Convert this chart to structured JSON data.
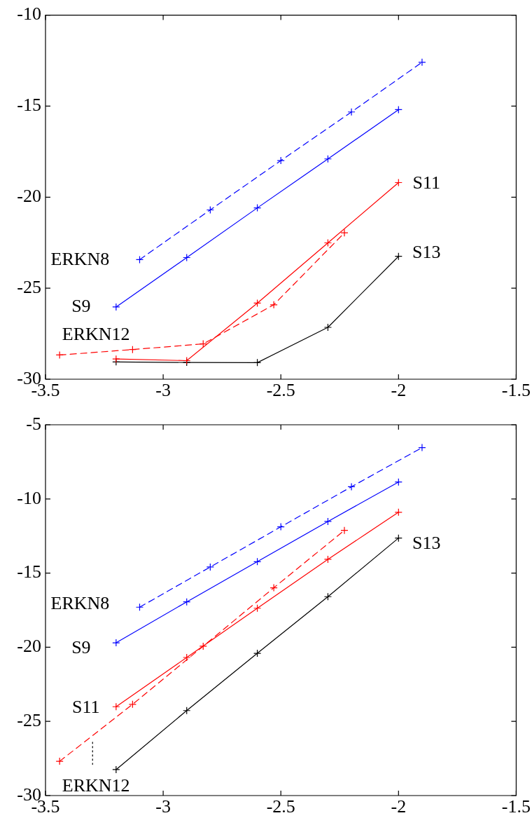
{
  "chart_data": [
    {
      "type": "line",
      "marker": "cross",
      "grid": false,
      "legend": false,
      "xlim": [
        -3.5,
        -1.5
      ],
      "xticks": [
        -3.5,
        -3,
        -2.5,
        -2,
        -1.5
      ],
      "ylim": [
        -30,
        -10
      ],
      "yticks": [
        -30,
        -25,
        -20,
        -15,
        -10
      ],
      "series": [
        {
          "name": "ERKN8",
          "color": "#0000ff",
          "line_style": "dashed",
          "x": [
            -3.1,
            -2.8,
            -2.5,
            -2.2,
            -1.9
          ],
          "values": [
            -23.43,
            -20.7,
            -17.99,
            -15.32,
            -12.59
          ]
        },
        {
          "name": "S9",
          "color": "#0000ff",
          "line_style": "solid",
          "x": [
            -3.2,
            -2.9,
            -2.6,
            -2.3,
            -2
          ],
          "values": [
            -26.03,
            -23.32,
            -20.59,
            -17.9,
            -15.19
          ]
        },
        {
          "name": "ERKN12",
          "color": "#ff0000",
          "line_style": "dashed",
          "x": [
            -3.44,
            -3.13,
            -2.83,
            -2.53,
            -2.23
          ],
          "values": [
            -28.67,
            -28.37,
            -28.06,
            -25.91,
            -21.96
          ]
        },
        {
          "name": "S11",
          "color": "#ff0000",
          "line_style": "solid",
          "x": [
            -3.2,
            -2.9,
            -2.6,
            -2.3,
            -2
          ],
          "values": [
            -28.89,
            -28.98,
            -25.82,
            -22.51,
            -19.2
          ]
        },
        {
          "name": "S13",
          "color": "#000000",
          "line_style": "solid",
          "x": [
            -3.2,
            -2.9,
            -2.6,
            -2.3,
            -2
          ],
          "values": [
            -29.05,
            -29.08,
            -29.09,
            -27.15,
            -23.25
          ]
        }
      ]
    },
    {
      "type": "line",
      "marker": "cross",
      "grid": false,
      "legend": false,
      "xlim": [
        -3.5,
        -1.5
      ],
      "xticks": [
        -3.5,
        -3,
        -2.5,
        -2,
        -1.5
      ],
      "ylim": [
        -30,
        -5
      ],
      "yticks": [
        -30,
        -25,
        -20,
        -15,
        -10,
        -5
      ],
      "series": [
        {
          "name": "ERKN8",
          "color": "#0000ff",
          "line_style": "dashed",
          "x": [
            -3.1,
            -2.8,
            -2.5,
            -2.2,
            -1.9
          ],
          "values": [
            -17.3,
            -14.59,
            -11.88,
            -9.18,
            -6.54
          ]
        },
        {
          "name": "S9",
          "color": "#0000ff",
          "line_style": "solid",
          "x": [
            -3.2,
            -2.9,
            -2.6,
            -2.3,
            -2
          ],
          "values": [
            -19.7,
            -16.94,
            -14.23,
            -11.52,
            -8.86
          ]
        },
        {
          "name": "ERKN12",
          "color": "#ff0000",
          "line_style": "dashed",
          "x": [
            -3.44,
            -3.13,
            -2.83,
            -2.53,
            -2.23
          ],
          "values": [
            -27.69,
            -23.85,
            -19.93,
            -15.99,
            -12.12
          ]
        },
        {
          "name": "S11",
          "color": "#ff0000",
          "line_style": "solid",
          "x": [
            -3.2,
            -2.9,
            -2.6,
            -2.3,
            -2
          ],
          "values": [
            -24.01,
            -20.69,
            -17.37,
            -14.07,
            -10.9
          ]
        },
        {
          "name": "S13",
          "color": "#000000",
          "line_style": "solid",
          "x": [
            -3.2,
            -2.9,
            -2.6,
            -2.3,
            -2
          ],
          "values": [
            -28.25,
            -24.27,
            -20.41,
            -16.59,
            -12.64
          ]
        },
        {
          "color": "#000000",
          "line_style": "dotted",
          "marker": "none",
          "x": [
            -3.3,
            -3.3
          ],
          "values": [
            -26.4,
            -27.9
          ]
        }
      ]
    }
  ]
}
